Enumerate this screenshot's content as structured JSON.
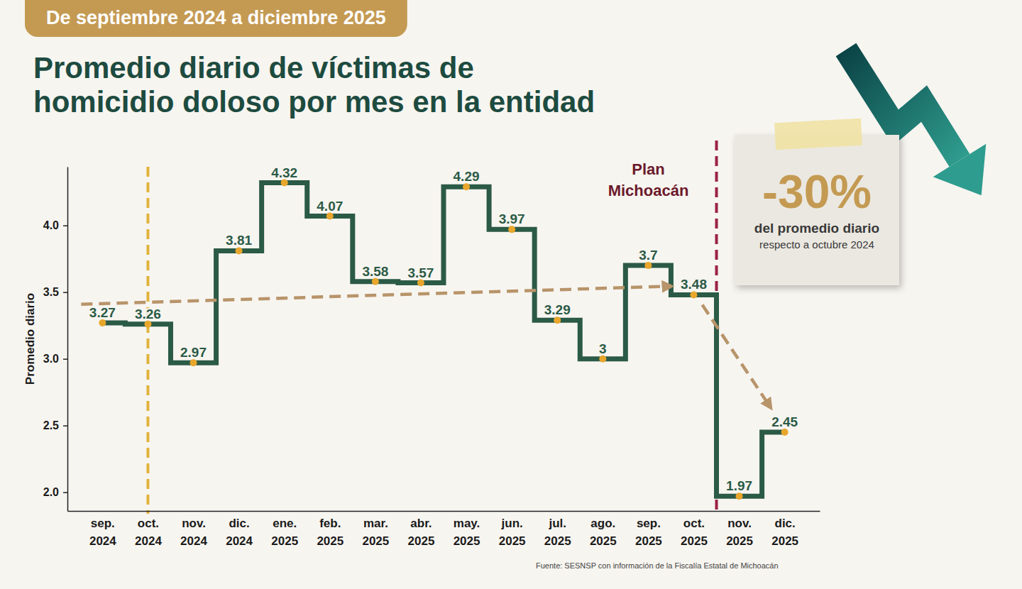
{
  "chart_data": {
    "type": "line",
    "header": "De septiembre 2024 a diciembre 2025",
    "title": "Promedio diario de víctimas de homicidio doloso por mes en la entidad",
    "y_label": "Promedio diario",
    "categories": [
      "sep. 2024",
      "oct. 2024",
      "nov. 2024",
      "dic. 2024",
      "ene. 2025",
      "feb. 2025",
      "mar. 2025",
      "abr. 2025",
      "may. 2025",
      "jun. 2025",
      "jul. 2025",
      "ago. 2025",
      "sep. 2025",
      "oct. 2025",
      "nov. 2025",
      "dic. 2025"
    ],
    "values": [
      3.27,
      3.26,
      2.97,
      3.81,
      4.32,
      4.07,
      3.58,
      3.57,
      4.29,
      3.97,
      3.29,
      3,
      3.7,
      3.48,
      1.97,
      2.45
    ],
    "color": "#2b5a46",
    "marker": "circle",
    "line_style": "step",
    "data_labels": true,
    "grid": false,
    "ylim": [
      1.86,
      4.44
    ],
    "yticks": [
      {
        "value": 2,
        "label": "2.0"
      },
      {
        "value": 2.5,
        "label": "2.5"
      },
      {
        "value": 3,
        "label": "3.0"
      },
      {
        "value": 3.5,
        "label": "3.5"
      },
      {
        "value": 4,
        "label": "4.0"
      }
    ],
    "reference_lines": [
      {
        "category": "oct. 2024",
        "color": "#e0b33c",
        "line_style": "dashed"
      },
      {
        "category": "oct. 2025",
        "position": "after",
        "color": "#9b2245",
        "line_style": "dashed",
        "label": "Plan Michoacán"
      }
    ],
    "callout": {
      "text": "-30%",
      "lines": [
        "del promedio diario",
        "respecto a octubre 2024"
      ]
    },
    "source": "Fuente: SESNSP con información de la Fiscalía Estatal de Michoacán"
  }
}
